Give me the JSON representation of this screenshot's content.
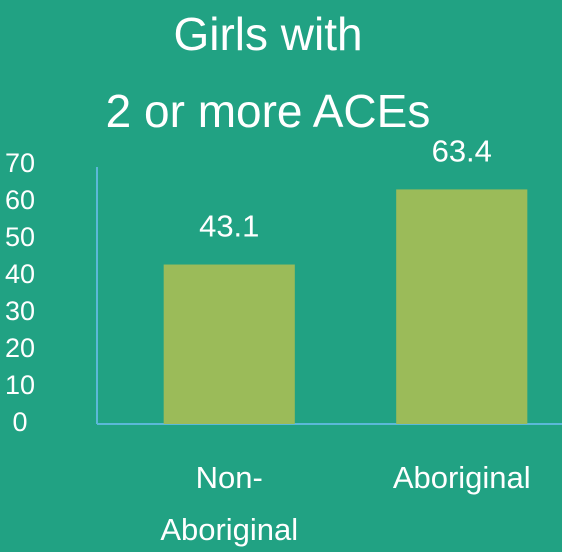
{
  "chart_data": {
    "type": "bar",
    "title": [
      "Girls with",
      "2 or more ACEs"
    ],
    "categories": [
      "Non-Aboriginal",
      "Aboriginal"
    ],
    "values": [
      43.1,
      63.4
    ],
    "color": "#9bbb59",
    "ylim": [
      0,
      70
    ],
    "yticks": [
      0,
      10,
      20,
      30,
      40,
      50,
      60,
      70
    ],
    "grid": false
  }
}
